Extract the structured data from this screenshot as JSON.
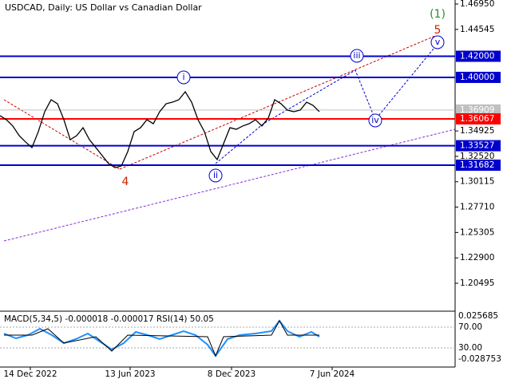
{
  "chart_data": {
    "type": "line",
    "title": "USDCAD, Daily:  US Dollar vs Canadian Dollar",
    "x": [
      0,
      8,
      16,
      24,
      32,
      40,
      48,
      56,
      64,
      72,
      80,
      88,
      96,
      104,
      112,
      120,
      128,
      136,
      144,
      152,
      160,
      168,
      176,
      184,
      192,
      200,
      208,
      216,
      224,
      232,
      240,
      248,
      256,
      264,
      272,
      280,
      288,
      296,
      304,
      312,
      320,
      328,
      336,
      344,
      352,
      360,
      368,
      376,
      384,
      392,
      400
    ],
    "series": [
      {
        "name": "USDCAD",
        "color": "#000000",
        "values": [
          1.3637,
          1.3599,
          1.3539,
          1.3448,
          1.3388,
          1.3335,
          1.3486,
          1.3675,
          1.3788,
          1.375,
          1.3599,
          1.341,
          1.3448,
          1.3523,
          1.341,
          1.3335,
          1.3259,
          1.3183,
          1.3145,
          1.3161,
          1.3297,
          1.3486,
          1.3523,
          1.3599,
          1.3561,
          1.3675,
          1.375,
          1.3765,
          1.3788,
          1.3864,
          1.3765,
          1.3599,
          1.3486,
          1.3297,
          1.3221,
          1.3372,
          1.3523,
          1.3508,
          1.3539,
          1.3561,
          1.3599,
          1.3539,
          1.3614,
          1.3788,
          1.375,
          1.369,
          1.3675,
          1.369,
          1.3765,
          1.3735,
          1.3675
        ]
      }
    ],
    "xlim": [
      0,
      570
    ],
    "xticks": [
      {
        "value": 38,
        "label": "14 Dec 2022"
      },
      {
        "value": 163,
        "label": "13 Jun 2023"
      },
      {
        "value": 290,
        "label": "8 Dec 2023"
      },
      {
        "value": 416,
        "label": "7 Jun 2024"
      }
    ],
    "ylim": [
      1.18,
      1.4733
    ],
    "yticks": [
      {
        "value": 1.4695,
        "label": "1.46950"
      },
      {
        "value": 1.44545,
        "label": "1.44545"
      },
      {
        "value": 1.34925,
        "label": "1.34925"
      },
      {
        "value": 1.3252,
        "label": "1.32520"
      },
      {
        "value": 1.30115,
        "label": "1.30115"
      },
      {
        "value": 1.2771,
        "label": "1.27710"
      },
      {
        "value": 1.25305,
        "label": "1.25305"
      },
      {
        "value": 1.229,
        "label": "1.22900"
      },
      {
        "value": 1.20495,
        "label": "1.20495"
      }
    ],
    "levels": [
      {
        "value": 1.42,
        "label": "1.42000",
        "color": "#0000cd"
      },
      {
        "value": 1.4,
        "label": "1.40000",
        "color": "#0000cd"
      },
      {
        "value": 1.36909,
        "label": "1.36909",
        "color": "#c0c0c0"
      },
      {
        "value": 1.36067,
        "label": "1.36067",
        "color": "#ff0000"
      },
      {
        "value": 1.33527,
        "label": "1.33527",
        "color": "#0000cd"
      },
      {
        "value": 1.31682,
        "label": "1.31682",
        "color": "#0000cd"
      }
    ],
    "annotations": [
      "(1)",
      "5",
      "i",
      "ii",
      "iii",
      "iv",
      "v",
      "4"
    ],
    "indicator": {
      "title": "MACD(5,34,5) -0.000018 -0.000017 RSI(14) 50.05",
      "labels": [
        "0.025685",
        "70.00",
        "30.00",
        "-0.028753"
      ]
    }
  }
}
